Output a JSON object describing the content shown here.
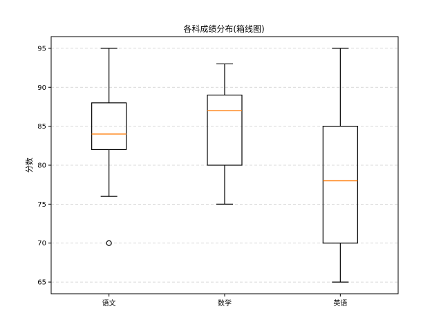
{
  "chart_data": {
    "type": "box",
    "title": "各科成绩分布(箱线图)",
    "xlabel": "",
    "ylabel": "分数",
    "ylim": [
      63.5,
      96.5
    ],
    "yticks": [
      65,
      70,
      75,
      80,
      85,
      90,
      95
    ],
    "grid": {
      "y": true,
      "x": false,
      "style": "dashed"
    },
    "categories": [
      "语文",
      "数学",
      "英语"
    ],
    "boxes": [
      {
        "category": "语文",
        "whisker_low": 76,
        "q1": 82,
        "median": 84,
        "q3": 88,
        "whisker_high": 95,
        "outliers": [
          70
        ]
      },
      {
        "category": "数学",
        "whisker_low": 75,
        "q1": 80,
        "median": 87,
        "q3": 89,
        "whisker_high": 93,
        "outliers": []
      },
      {
        "category": "英语",
        "whisker_low": 65,
        "q1": 70,
        "median": 78,
        "q3": 85,
        "whisker_high": 95,
        "outliers": []
      }
    ],
    "colors": {
      "box": "#000000",
      "median": "#ff7f0e",
      "grid": "#cccccc"
    }
  }
}
